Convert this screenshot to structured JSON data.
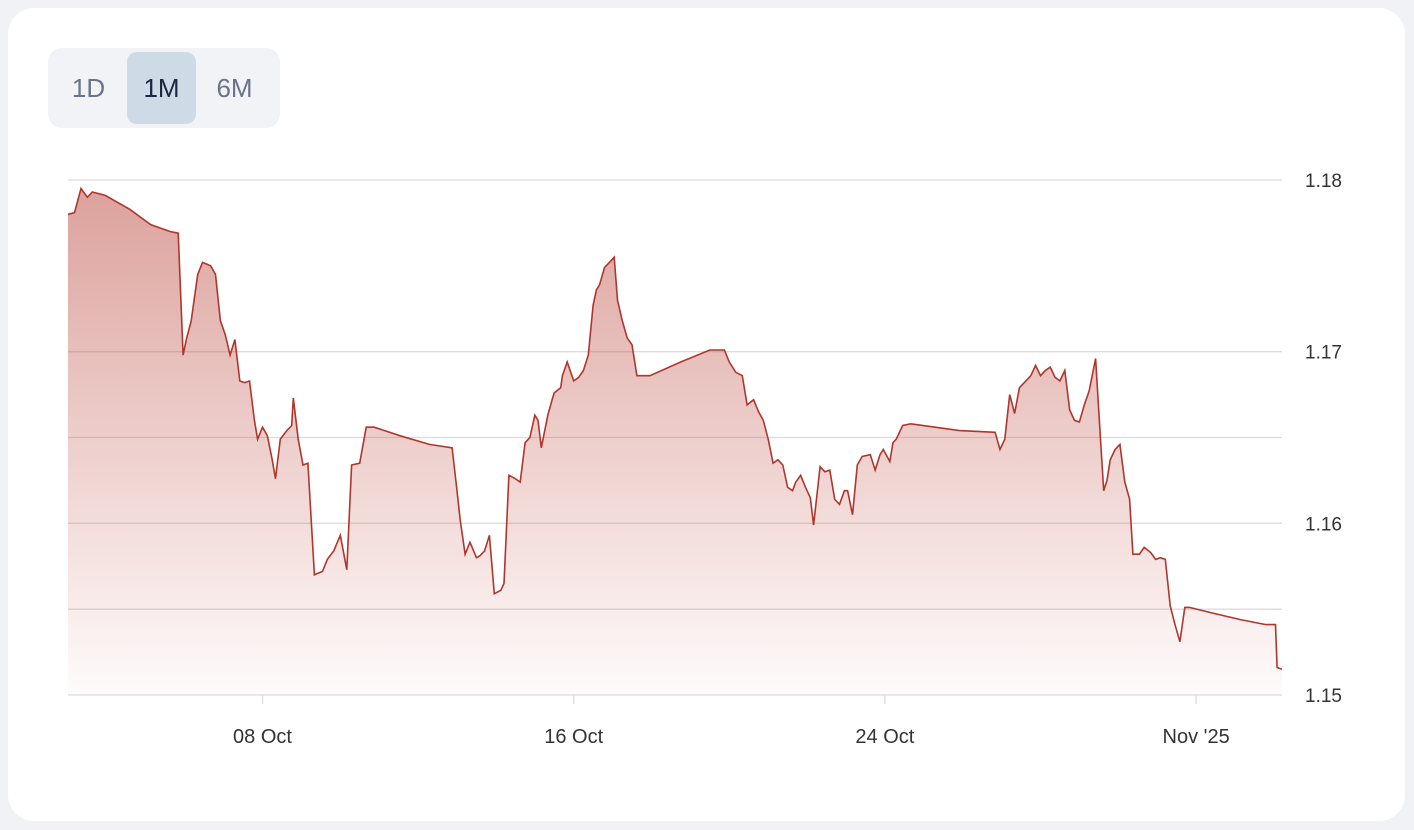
{
  "range_tabs": {
    "items": [
      {
        "label": "1D"
      },
      {
        "label": "1M"
      },
      {
        "label": "6M"
      }
    ],
    "selected": "1M"
  },
  "colors": {
    "line": "#b0362c",
    "fill": "#c0554b",
    "grid": "#dcdcdc",
    "active_tab": "#cfdae7"
  },
  "chart_data": {
    "type": "area",
    "title": "",
    "xlabel": "",
    "ylabel": "",
    "ylim": [
      1.15,
      1.18
    ],
    "yticks": [
      1.15,
      1.155,
      1.16,
      1.165,
      1.17,
      1.175,
      1.18
    ],
    "ytick_labels": [
      {
        "value": 1.18,
        "label": "1.18"
      },
      {
        "value": 1.17,
        "label": "1.17"
      },
      {
        "value": 1.16,
        "label": "1.16"
      },
      {
        "value": 1.15,
        "label": "1.15"
      }
    ],
    "xlim": [
      "2025-10-03T00:00",
      "2025-11-03T05:00"
    ],
    "xtick_labels": [
      {
        "date": "2025-10-08T00:00",
        "label": "08 Oct"
      },
      {
        "date": "2025-10-16T00:00",
        "label": "16 Oct"
      },
      {
        "date": "2025-10-24T00:00",
        "label": "24 Oct"
      },
      {
        "date": "2025-11-01T00:00",
        "label": "Nov '25"
      }
    ],
    "grid": true,
    "y_axis_position": "right",
    "points": [
      [
        "2025-10-03T00:00",
        1.178
      ],
      [
        "2025-10-03T04:00",
        1.1781
      ],
      [
        "2025-10-03T08:00",
        1.1795
      ],
      [
        "2025-10-03T12:00",
        1.179
      ],
      [
        "2025-10-03T15:00",
        1.1793
      ],
      [
        "2025-10-03T23:00",
        1.1791
      ],
      [
        "2025-10-04T14:00",
        1.1783
      ],
      [
        "2025-10-05T03:00",
        1.1774
      ],
      [
        "2025-10-05T15:00",
        1.177
      ],
      [
        "2025-10-05T20:00",
        1.1769
      ],
      [
        "2025-10-05T23:00",
        1.1698
      ],
      [
        "2025-10-06T01:00",
        1.1707
      ],
      [
        "2025-10-06T04:00",
        1.1718
      ],
      [
        "2025-10-06T08:00",
        1.1745
      ],
      [
        "2025-10-06T11:00",
        1.1752
      ],
      [
        "2025-10-06T16:00",
        1.175
      ],
      [
        "2025-10-06T19:00",
        1.1745
      ],
      [
        "2025-10-06T22:00",
        1.1718
      ],
      [
        "2025-10-07T01:00",
        1.171
      ],
      [
        "2025-10-07T04:00",
        1.1698
      ],
      [
        "2025-10-07T07:00",
        1.1707
      ],
      [
        "2025-10-07T10:00",
        1.1683
      ],
      [
        "2025-10-07T13:00",
        1.1682
      ],
      [
        "2025-10-07T16:00",
        1.1683
      ],
      [
        "2025-10-07T19:00",
        1.166
      ],
      [
        "2025-10-07T21:00",
        1.1649
      ],
      [
        "2025-10-08T00:00",
        1.1656
      ],
      [
        "2025-10-08T03:00",
        1.1651
      ],
      [
        "2025-10-08T06:00",
        1.1637
      ],
      [
        "2025-10-08T08:00",
        1.1626
      ],
      [
        "2025-10-08T11:00",
        1.1649
      ],
      [
        "2025-10-08T15:00",
        1.1654
      ],
      [
        "2025-10-08T18:00",
        1.1657
      ],
      [
        "2025-10-08T19:00",
        1.1673
      ],
      [
        "2025-10-08T22:00",
        1.1649
      ],
      [
        "2025-10-09T01:00",
        1.1634
      ],
      [
        "2025-10-09T04:00",
        1.1635
      ],
      [
        "2025-10-09T08:00",
        1.157
      ],
      [
        "2025-10-09T13:00",
        1.1572
      ],
      [
        "2025-10-09T16:00",
        1.1579
      ],
      [
        "2025-10-09T20:00",
        1.1584
      ],
      [
        "2025-10-10T00:00",
        1.1593
      ],
      [
        "2025-10-10T04:00",
        1.1573
      ],
      [
        "2025-10-10T07:00",
        1.1634
      ],
      [
        "2025-10-10T12:00",
        1.1635
      ],
      [
        "2025-10-10T16:00",
        1.1656
      ],
      [
        "2025-10-10T21:00",
        1.1656
      ],
      [
        "2025-10-11T13:00",
        1.1651
      ],
      [
        "2025-10-12T07:00",
        1.1646
      ],
      [
        "2025-10-12T21:00",
        1.1644
      ],
      [
        "2025-10-13T00:00",
        1.1619
      ],
      [
        "2025-10-13T02:00",
        1.1602
      ],
      [
        "2025-10-13T05:00",
        1.1582
      ],
      [
        "2025-10-13T08:00",
        1.1589
      ],
      [
        "2025-10-13T12:00",
        1.158
      ],
      [
        "2025-10-13T14:00",
        1.1581
      ],
      [
        "2025-10-13T17:00",
        1.1584
      ],
      [
        "2025-10-13T20:00",
        1.1593
      ],
      [
        "2025-10-13T23:00",
        1.1559
      ],
      [
        "2025-10-14T03:00",
        1.1561
      ],
      [
        "2025-10-14T05:00",
        1.1565
      ],
      [
        "2025-10-14T08:00",
        1.1628
      ],
      [
        "2025-10-14T12:00",
        1.1626
      ],
      [
        "2025-10-14T15:00",
        1.1624
      ],
      [
        "2025-10-14T18:00",
        1.1647
      ],
      [
        "2025-10-14T21:00",
        1.165
      ],
      [
        "2025-10-15T00:00",
        1.1663
      ],
      [
        "2025-10-15T02:00",
        1.166
      ],
      [
        "2025-10-15T04:00",
        1.1644
      ],
      [
        "2025-10-15T08:00",
        1.1663
      ],
      [
        "2025-10-15T11:00",
        1.1673
      ],
      [
        "2025-10-15T12:00",
        1.1676
      ],
      [
        "2025-10-15T16:00",
        1.1679
      ],
      [
        "2025-10-15T17:00",
        1.1686
      ],
      [
        "2025-10-15T20:00",
        1.1694
      ],
      [
        "2025-10-16T00:00",
        1.1683
      ],
      [
        "2025-10-16T03:00",
        1.1685
      ],
      [
        "2025-10-16T06:00",
        1.1689
      ],
      [
        "2025-10-16T09:00",
        1.1698
      ],
      [
        "2025-10-16T12:00",
        1.1727
      ],
      [
        "2025-10-16T14:00",
        1.1736
      ],
      [
        "2025-10-16T16:00",
        1.1739
      ],
      [
        "2025-10-16T19:00",
        1.1749
      ],
      [
        "2025-10-16T22:00",
        1.1752
      ],
      [
        "2025-10-17T01:00",
        1.1755
      ],
      [
        "2025-10-17T03:00",
        1.173
      ],
      [
        "2025-10-17T06:00",
        1.1718
      ],
      [
        "2025-10-17T09:00",
        1.1708
      ],
      [
        "2025-10-17T12:00",
        1.1704
      ],
      [
        "2025-10-17T15:00",
        1.1686
      ],
      [
        "2025-10-17T23:00",
        1.1686
      ],
      [
        "2025-10-18T18:00",
        1.1694
      ],
      [
        "2025-10-19T12:00",
        1.1701
      ],
      [
        "2025-10-19T21:00",
        1.1701
      ],
      [
        "2025-10-20T00:00",
        1.1694
      ],
      [
        "2025-10-20T04:00",
        1.1688
      ],
      [
        "2025-10-20T08:00",
        1.1686
      ],
      [
        "2025-10-20T11:00",
        1.1669
      ],
      [
        "2025-10-20T15:00",
        1.1672
      ],
      [
        "2025-10-20T18:00",
        1.1665
      ],
      [
        "2025-10-20T21:00",
        1.166
      ],
      [
        "2025-10-21T00:00",
        1.1649
      ],
      [
        "2025-10-21T03:00",
        1.1635
      ],
      [
        "2025-10-21T06:00",
        1.1637
      ],
      [
        "2025-10-21T09:00",
        1.1634
      ],
      [
        "2025-10-21T12:00",
        1.1621
      ],
      [
        "2025-10-21T15:00",
        1.1619
      ],
      [
        "2025-10-21T17:00",
        1.1624
      ],
      [
        "2025-10-21T20:00",
        1.1628
      ],
      [
        "2025-10-21T23:00",
        1.1621
      ],
      [
        "2025-10-22T02:00",
        1.1615
      ],
      [
        "2025-10-22T04:00",
        1.1599
      ],
      [
        "2025-10-22T08:00",
        1.1633
      ],
      [
        "2025-10-22T11:00",
        1.163
      ],
      [
        "2025-10-22T14:00",
        1.1631
      ],
      [
        "2025-10-22T17:00",
        1.1614
      ],
      [
        "2025-10-22T20:00",
        1.1611
      ],
      [
        "2025-10-22T23:00",
        1.1619
      ],
      [
        "2025-10-23T01:00",
        1.1619
      ],
      [
        "2025-10-23T04:00",
        1.1605
      ],
      [
        "2025-10-23T07:00",
        1.1634
      ],
      [
        "2025-10-23T10:00",
        1.1639
      ],
      [
        "2025-10-23T15:00",
        1.164
      ],
      [
        "2025-10-23T18:00",
        1.1631
      ],
      [
        "2025-10-23T21:00",
        1.164
      ],
      [
        "2025-10-23T23:00",
        1.1643
      ],
      [
        "2025-10-24T03:00",
        1.1636
      ],
      [
        "2025-10-24T05:00",
        1.1647
      ],
      [
        "2025-10-24T07:00",
        1.1649
      ],
      [
        "2025-10-24T11:00",
        1.1657
      ],
      [
        "2025-10-24T16:00",
        1.1658
      ],
      [
        "2025-10-25T22:00",
        1.1654
      ],
      [
        "2025-10-26T20:00",
        1.1653
      ],
      [
        "2025-10-26T23:00",
        1.1643
      ],
      [
        "2025-10-27T02:00",
        1.1649
      ],
      [
        "2025-10-27T05:00",
        1.1675
      ],
      [
        "2025-10-27T08:00",
        1.1664
      ],
      [
        "2025-10-27T11:00",
        1.1679
      ],
      [
        "2025-10-27T14:00",
        1.1682
      ],
      [
        "2025-10-27T18:00",
        1.1686
      ],
      [
        "2025-10-27T21:00",
        1.1692
      ],
      [
        "2025-10-28T00:00",
        1.1686
      ],
      [
        "2025-10-28T03:00",
        1.1689
      ],
      [
        "2025-10-28T06:00",
        1.1691
      ],
      [
        "2025-10-28T09:00",
        1.1685
      ],
      [
        "2025-10-28T12:00",
        1.1683
      ],
      [
        "2025-10-28T15:00",
        1.1689
      ],
      [
        "2025-10-28T18:00",
        1.1666
      ],
      [
        "2025-10-28T21:00",
        1.166
      ],
      [
        "2025-10-29T00:00",
        1.1659
      ],
      [
        "2025-10-29T03:00",
        1.1669
      ],
      [
        "2025-10-29T06:00",
        1.1677
      ],
      [
        "2025-10-29T10:00",
        1.1696
      ],
      [
        "2025-10-29T13:00",
        1.1649
      ],
      [
        "2025-10-29T15:00",
        1.1619
      ],
      [
        "2025-10-29T17:00",
        1.1625
      ],
      [
        "2025-10-29T19:00",
        1.1637
      ],
      [
        "2025-10-29T22:00",
        1.1643
      ],
      [
        "2025-10-30T01:00",
        1.1646
      ],
      [
        "2025-10-30T04:00",
        1.1624
      ],
      [
        "2025-10-30T07:00",
        1.1614
      ],
      [
        "2025-10-30T09:00",
        1.1582
      ],
      [
        "2025-10-30T13:00",
        1.1582
      ],
      [
        "2025-10-30T16:00",
        1.1586
      ],
      [
        "2025-10-30T20:00",
        1.1583
      ],
      [
        "2025-10-30T23:00",
        1.1579
      ],
      [
        "2025-10-31T02:00",
        1.158
      ],
      [
        "2025-10-31T05:00",
        1.1579
      ],
      [
        "2025-10-31T08:00",
        1.1552
      ],
      [
        "2025-10-31T11:00",
        1.1541
      ],
      [
        "2025-10-31T14:00",
        1.1531
      ],
      [
        "2025-10-31T17:00",
        1.1551
      ],
      [
        "2025-10-31T20:00",
        1.1551
      ],
      [
        "2025-11-01T09:00",
        1.1548
      ],
      [
        "2025-11-02T03:00",
        1.1544
      ],
      [
        "2025-11-02T19:00",
        1.1541
      ],
      [
        "2025-11-03T01:00",
        1.1541
      ],
      [
        "2025-11-03T02:00",
        1.1516
      ],
      [
        "2025-11-03T05:00",
        1.1515
      ]
    ]
  }
}
